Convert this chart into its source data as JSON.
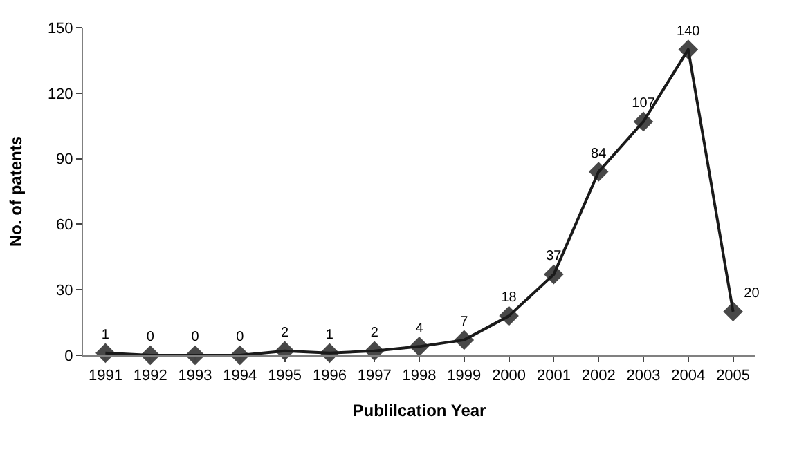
{
  "chart_data": {
    "type": "line",
    "xlabel": "Publilcation Year",
    "ylabel": "No. of patents",
    "categories": [
      "1991",
      "1992",
      "1993",
      "1994",
      "1995",
      "1996",
      "1997",
      "1998",
      "1999",
      "2000",
      "2001",
      "2002",
      "2003",
      "2004",
      "2005"
    ],
    "series": [
      {
        "color": "#1a1a1a",
        "values": [
          1,
          0,
          0,
          0,
          2,
          1,
          2,
          4,
          7,
          18,
          37,
          84,
          107,
          140,
          20
        ]
      }
    ],
    "ylim": [
      0,
      150
    ],
    "yticks": [
      0,
      30,
      60,
      90,
      120,
      150
    ],
    "data_labels": true,
    "marker": "diamond",
    "line_style": "solid"
  }
}
